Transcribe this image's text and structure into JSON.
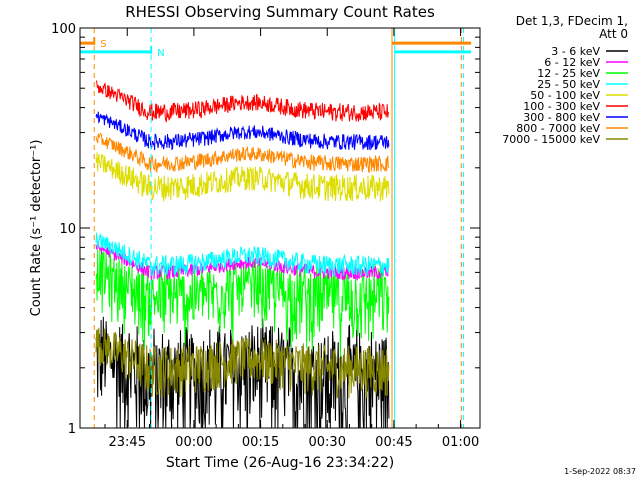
{
  "chart_data": {
    "type": "line",
    "title": "RHESSI Observing Summary Count Rates",
    "xlabel": "Start Time (26-Aug-16 23:34:22)",
    "ylabel": "Count Rate (s⁻¹ detector⁻¹)",
    "yscale": "log",
    "ylim": [
      1,
      100
    ],
    "xlim_minutes": [
      0,
      90
    ],
    "x_ticks": [
      {
        "label": "23:45",
        "minute": 10.63
      },
      {
        "label": "00:00",
        "minute": 25.63
      },
      {
        "label": "00:15",
        "minute": 40.63
      },
      {
        "label": "00:30",
        "minute": 55.63
      },
      {
        "label": "00:45",
        "minute": 70.63
      },
      {
        "label": "01:00",
        "minute": 85.63
      }
    ],
    "y_ticks": [
      {
        "label": "1",
        "value": 1
      },
      {
        "label": "10",
        "value": 10
      },
      {
        "label": "100",
        "value": 100
      }
    ],
    "legend_header": [
      "Det 1,3, FDecim 1,",
      "Att 0"
    ],
    "legend_position": "right",
    "data_window_minutes": [
      3.6,
      69.5
    ],
    "series": [
      {
        "name": "3 - 6 keV",
        "color": "#000000",
        "level": 1.8,
        "spread": 0.8,
        "floor": 1.0
      },
      {
        "name": "6 - 12 keV",
        "color": "#ff00ff",
        "level": 6.0,
        "spread": 0.5,
        "floor": 4.0
      },
      {
        "name": "12 - 25 keV",
        "color": "#00ff00",
        "level": 4.5,
        "spread": 1.2,
        "floor": 2.0
      },
      {
        "name": "25 - 50 keV",
        "color": "#00ffff",
        "level": 6.5,
        "spread": 0.8,
        "floor": 5.0
      },
      {
        "name": "50 - 100 keV",
        "color": "#dddd00",
        "level": 16,
        "spread": 2.5,
        "floor": 12
      },
      {
        "name": "100 - 300 keV",
        "color": "#ff0000",
        "level": 38,
        "spread": 4.0,
        "floor": 30
      },
      {
        "name": "300 - 800 keV",
        "color": "#0000ff",
        "level": 27,
        "spread": 2.5,
        "floor": 21
      },
      {
        "name": "800 - 7000 keV",
        "color": "#ff8800",
        "level": 21,
        "spread": 2.0,
        "floor": 16
      },
      {
        "name": "7000 - 15000 keV",
        "color": "#888800",
        "level": 2.0,
        "spread": 0.6,
        "floor": 1.0
      }
    ],
    "annotations": [
      {
        "text": "S",
        "color": "#ff8800",
        "minute_start": 0,
        "minute_end": 3.2,
        "value": 84
      },
      {
        "text": "N",
        "color": "#00ffff",
        "minute_start": 0,
        "minute_end": 16,
        "value": 76
      }
    ],
    "vertical_markers": [
      {
        "minute": 3.2,
        "color": "#ff8800",
        "style": "dashed"
      },
      {
        "minute": 16.0,
        "color": "#00ffff",
        "style": "dashed"
      },
      {
        "minute": 70.2,
        "color": "#ff8800",
        "style": "solid"
      },
      {
        "minute": 70.8,
        "color": "#00ffff",
        "style": "solid"
      },
      {
        "minute": 85.8,
        "color": "#ff8800",
        "style": "dashed"
      },
      {
        "minute": 86.3,
        "color": "#00ffff",
        "style": "dashed"
      }
    ],
    "state_bars": [
      {
        "color": "#ff8800",
        "value": 84,
        "minute_start": 70.2,
        "minute_end": 88.0
      },
      {
        "color": "#00ffff",
        "value": 76,
        "minute_start": 70.8,
        "minute_end": 88.0
      }
    ]
  },
  "footer": {
    "timestamp": "1-Sep-2022 08:37"
  }
}
